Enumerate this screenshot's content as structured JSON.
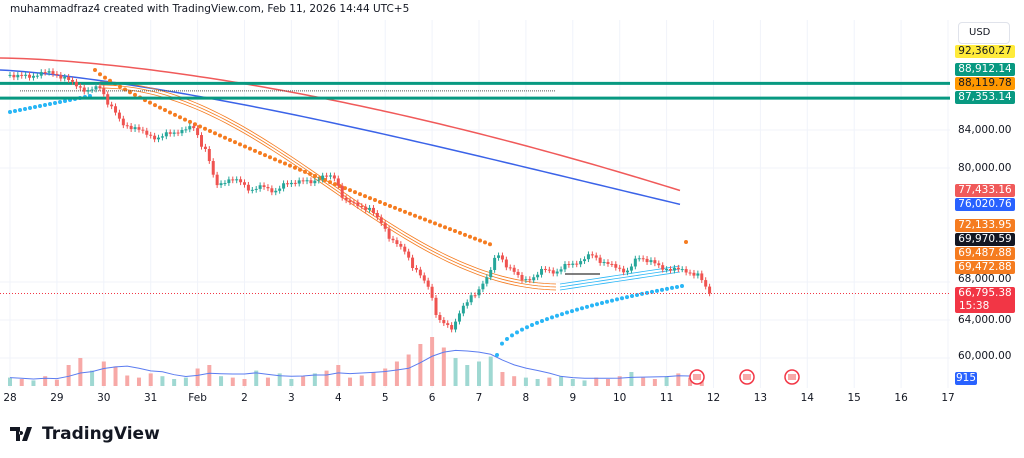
{
  "header": {
    "credit": "muhammadfraz4 created with TradingView.com, Feb 11, 2026 14:44 UTC+5"
  },
  "currency": "USD",
  "logo": "TradingView",
  "colors": {
    "up": "#26a69a",
    "down": "#ef5350",
    "ma_red": "#f05a5a",
    "ma_blue": "#3b63e8",
    "orange": "#f57c20",
    "light_blue": "#29b6f6",
    "level": "#089981"
  },
  "chart_data": {
    "type": "candlestick",
    "x_tick_labels": [
      "28",
      "29",
      "30",
      "31",
      "Feb",
      "2",
      "3",
      "4",
      "5",
      "6",
      "7",
      "8",
      "9",
      "10",
      "11",
      "12",
      "13",
      "14",
      "15",
      "16",
      "17"
    ],
    "y_tick_labels": [
      "84,000.00",
      "80,000.00",
      "68,000.00",
      "64,000.00",
      "60,000.00"
    ],
    "y_ticks": [
      84000,
      80000,
      68000,
      64000,
      60000
    ],
    "ylim": [
      58500,
      93500
    ],
    "closes_6h": [
      89800,
      89500,
      90100,
      89900,
      89600,
      88600,
      88200,
      88400,
      86500,
      84500,
      84300,
      83500,
      83200,
      83600,
      84000,
      84200,
      82000,
      78200,
      78800,
      78500,
      77700,
      78000,
      77600,
      78300,
      78700,
      78400,
      79200,
      78900,
      76600,
      76000,
      75800,
      74200,
      72400,
      71200,
      69300,
      67500,
      64000,
      63000,
      65500,
      66600,
      68500,
      70800,
      69500,
      68200,
      68500,
      69300,
      69100,
      69800,
      70200,
      70800,
      70100,
      69500,
      69200,
      70500,
      70300,
      69300,
      69500,
      69000,
      68900,
      66800
    ],
    "volume_6h": [
      12,
      10,
      8,
      14,
      9,
      30,
      40,
      22,
      35,
      28,
      15,
      12,
      18,
      14,
      10,
      12,
      25,
      30,
      14,
      12,
      10,
      22,
      12,
      18,
      10,
      14,
      18,
      22,
      30,
      12,
      15,
      20,
      25,
      35,
      45,
      60,
      70,
      55,
      40,
      30,
      35,
      42,
      20,
      14,
      12,
      10,
      12,
      14,
      10,
      8,
      12,
      10,
      14,
      20,
      12,
      10,
      14,
      18,
      12,
      16
    ],
    "levels": [
      {
        "value": 88912.14,
        "label": "88,912.14",
        "color": "#089981"
      },
      {
        "value": 88119.78,
        "label": "88,119.78",
        "color": "#ff9800"
      },
      {
        "value": 87353.14,
        "label": "87,353.14",
        "color": "#089981"
      }
    ],
    "price_labels": [
      {
        "label": "92,360.27",
        "bg": "#ffeb3b",
        "fg": "#131722",
        "value": 92360.27
      },
      {
        "label": "77,433.16",
        "bg": "#f05a5a",
        "fg": "#fff",
        "value": 77433.16
      },
      {
        "label": "76,020.76",
        "bg": "#2962ff",
        "fg": "#fff",
        "value": 76020.76
      },
      {
        "label": "72,133.95",
        "bg": "#f57c20",
        "fg": "#fff",
        "value": 72133.95
      },
      {
        "label": "69,970.59",
        "bg": "#131722",
        "fg": "#fff",
        "value": 69970.59
      },
      {
        "label": "69,487.88",
        "bg": "#f57c20",
        "fg": "#fff",
        "value": 69487.88
      },
      {
        "label": "69,472.88",
        "bg": "#f57c20",
        "fg": "#fff",
        "value": 69472.88
      }
    ],
    "last_price": {
      "label": "66,795.38",
      "countdown": "15:38",
      "value": 66795.38,
      "bg": "#f23645"
    },
    "volume_label": {
      "label": "915",
      "bg": "#2962ff"
    }
  }
}
